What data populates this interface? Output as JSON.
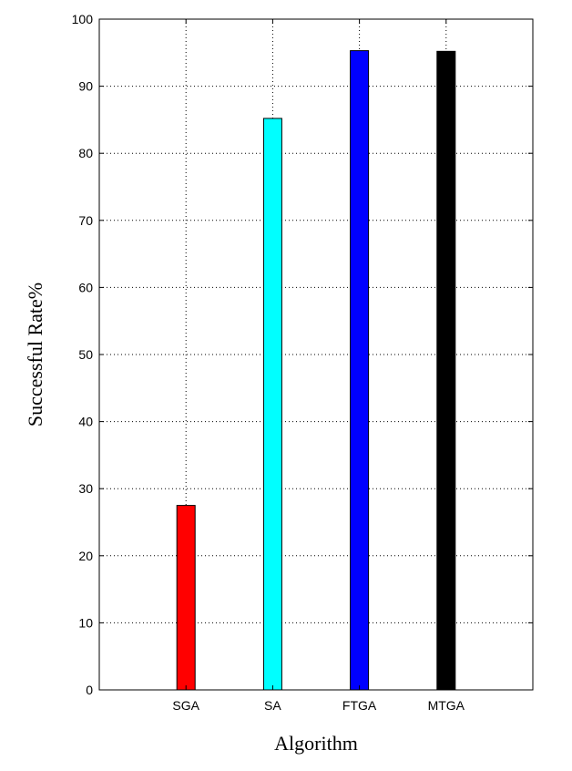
{
  "chart_data": {
    "type": "bar",
    "title": "",
    "xlabel": "Algorithm",
    "ylabel": "Successful Rate%",
    "categories": [
      "SGA",
      "SA",
      "FTGA",
      "MTGA"
    ],
    "values": [
      27.5,
      85.2,
      95.3,
      95.2
    ],
    "colors": [
      "#ff0000",
      "#00ffff",
      "#0000ff",
      "#000000"
    ],
    "ylim": [
      0,
      100
    ],
    "xlim": [
      0,
      5
    ],
    "yticks": [
      "0",
      "10",
      "20",
      "30",
      "40",
      "50",
      "60",
      "70",
      "80",
      "90",
      "100"
    ],
    "grid": true,
    "legend": "none"
  }
}
